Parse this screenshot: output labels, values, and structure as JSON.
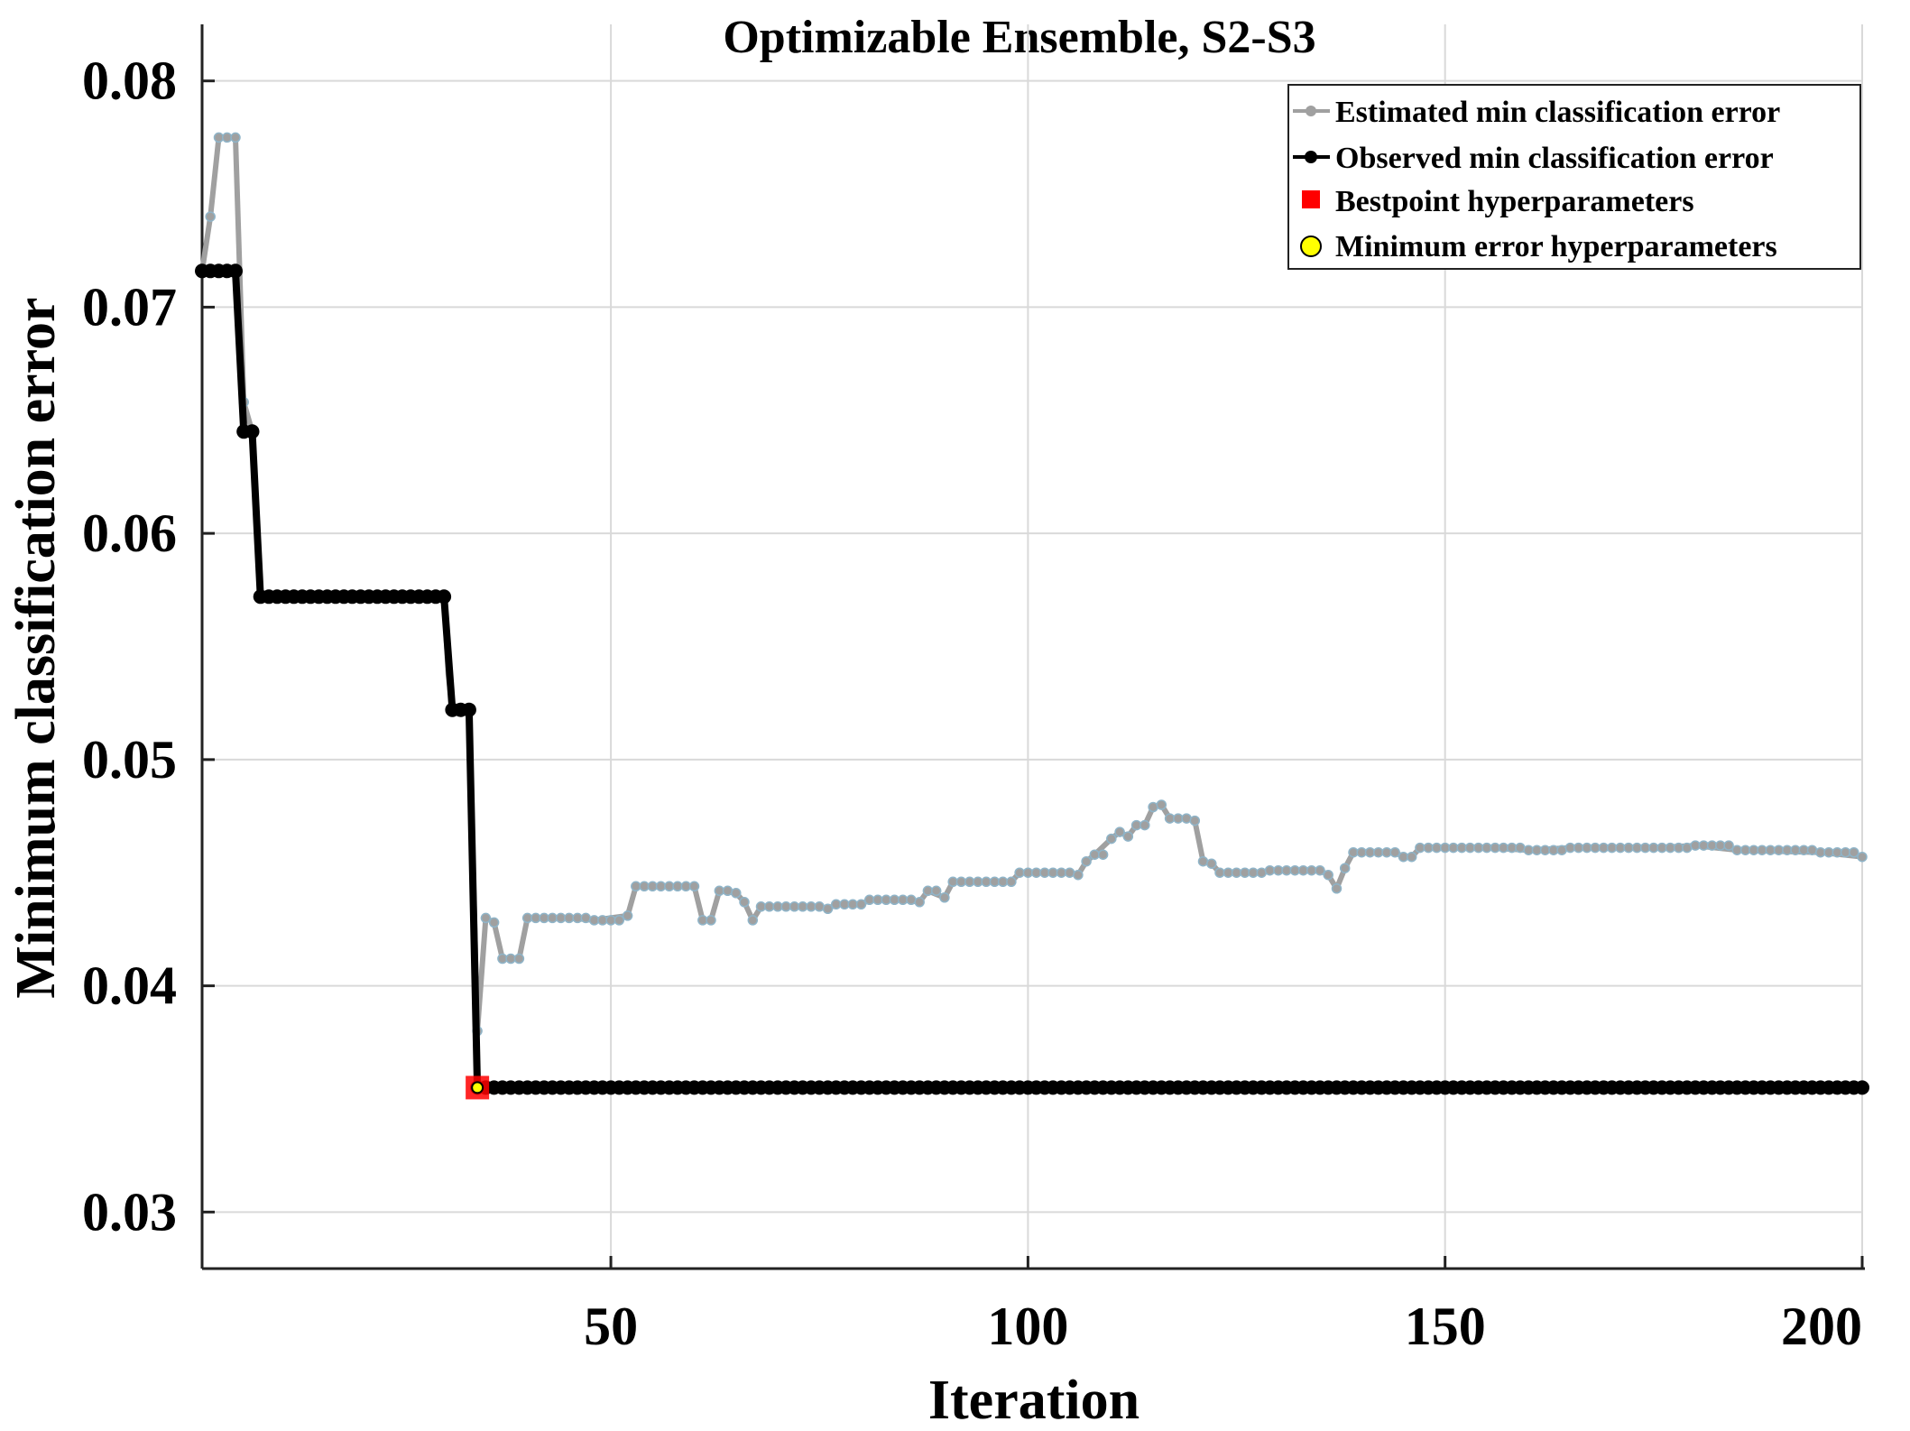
{
  "chart_data": {
    "type": "line",
    "title": "Optimizable Ensemble, S2-S3",
    "xlabel": "Iteration",
    "ylabel": "Minimum classification error",
    "xlim": [
      1,
      200
    ],
    "ylim": [
      0.0275,
      0.0825
    ],
    "xticks": [
      50,
      100,
      150,
      200
    ],
    "xtick_labels": [
      "50",
      "100",
      "150",
      "200"
    ],
    "yticks": [
      0.03,
      0.04,
      0.05,
      0.06,
      0.07,
      0.08
    ],
    "ytick_labels": [
      "0.03",
      "0.04",
      "0.05",
      "0.06",
      "0.07",
      "0.08"
    ],
    "grid": true,
    "legend_position": "top-right",
    "series": [
      {
        "name": "Estimated min classification error",
        "color": "#a0a0a0",
        "marker": "circle",
        "points": [
          [
            1,
            0.0716
          ],
          [
            2,
            0.074
          ],
          [
            3,
            0.0775
          ],
          [
            4,
            0.0775
          ],
          [
            5,
            0.0775
          ],
          [
            6,
            0.0658
          ],
          [
            7,
            0.0645
          ],
          [
            8,
            0.0572
          ],
          [
            9,
            0.0572
          ],
          [
            30,
            0.0572
          ],
          [
            30.5,
            0.0538
          ],
          [
            31,
            0.0522
          ],
          [
            33,
            0.0522
          ],
          [
            34,
            0.038
          ],
          [
            35,
            0.043
          ],
          [
            36,
            0.0428
          ],
          [
            37,
            0.0412
          ],
          [
            39,
            0.0412
          ],
          [
            40,
            0.043
          ],
          [
            45,
            0.043
          ],
          [
            48,
            0.0429
          ],
          [
            52,
            0.0431
          ],
          [
            53,
            0.0444
          ],
          [
            60,
            0.0444
          ],
          [
            61,
            0.0429
          ],
          [
            62,
            0.0429
          ],
          [
            63,
            0.0442
          ],
          [
            65,
            0.0441
          ],
          [
            66,
            0.0437
          ],
          [
            67,
            0.0429
          ],
          [
            68,
            0.0435
          ],
          [
            75,
            0.0435
          ],
          [
            76,
            0.0434
          ],
          [
            77,
            0.0436
          ],
          [
            80,
            0.0436
          ],
          [
            81,
            0.0438
          ],
          [
            85,
            0.0438
          ],
          [
            87,
            0.0437
          ],
          [
            88,
            0.0442
          ],
          [
            90,
            0.0439
          ],
          [
            91,
            0.0446
          ],
          [
            98,
            0.0446
          ],
          [
            99,
            0.045
          ],
          [
            105,
            0.045
          ],
          [
            106,
            0.0449
          ],
          [
            107,
            0.0455
          ],
          [
            108,
            0.0458
          ],
          [
            110,
            0.0465
          ],
          [
            111,
            0.0468
          ],
          [
            112,
            0.0466
          ],
          [
            113,
            0.0471
          ],
          [
            114,
            0.0471
          ],
          [
            115,
            0.0479
          ],
          [
            116,
            0.048
          ],
          [
            117,
            0.0474
          ],
          [
            119,
            0.0474
          ],
          [
            120,
            0.0473
          ],
          [
            121,
            0.0455
          ],
          [
            122,
            0.0454
          ],
          [
            123,
            0.045
          ],
          [
            128,
            0.045
          ],
          [
            129,
            0.0451
          ],
          [
            135,
            0.0451
          ],
          [
            136,
            0.0449
          ],
          [
            137,
            0.0443
          ],
          [
            138,
            0.0452
          ],
          [
            139,
            0.0459
          ],
          [
            144,
            0.0459
          ],
          [
            145,
            0.0457
          ],
          [
            146,
            0.0457
          ],
          [
            147,
            0.0461
          ],
          [
            155,
            0.0461
          ],
          [
            160,
            0.046
          ],
          [
            165,
            0.0461
          ],
          [
            175,
            0.0461
          ],
          [
            180,
            0.0462
          ],
          [
            185,
            0.046
          ],
          [
            195,
            0.0459
          ],
          [
            200,
            0.0457
          ]
        ]
      },
      {
        "name": "Observed min classification error",
        "color": "#000000",
        "marker": "circle",
        "points": [
          [
            1,
            0.0716
          ],
          [
            5,
            0.0716
          ],
          [
            6,
            0.0645
          ],
          [
            7,
            0.0645
          ],
          [
            8,
            0.0572
          ],
          [
            30,
            0.0572
          ],
          [
            31,
            0.0522
          ],
          [
            33,
            0.0522
          ],
          [
            34,
            0.0355
          ],
          [
            200,
            0.0355
          ]
        ]
      }
    ],
    "highlights": [
      {
        "name": "Bestpoint hyperparameters",
        "color": "#ff0000",
        "marker": "square",
        "x": 34,
        "y": 0.0355
      },
      {
        "name": "Minimum error hyperparameters",
        "color": "#ffff00",
        "marker": "circle",
        "x": 34,
        "y": 0.0355
      }
    ]
  }
}
